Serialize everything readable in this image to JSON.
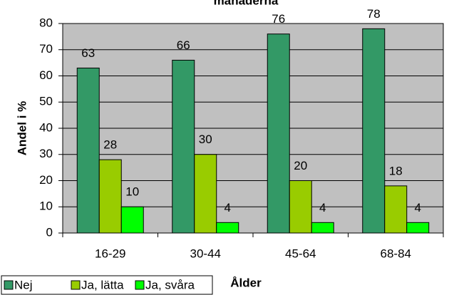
{
  "chart_data": {
    "type": "bar",
    "title": "månaderna",
    "xlabel": "Ålder",
    "ylabel": "Andel i %",
    "categories": [
      "16-29",
      "30-44",
      "45-64",
      "68-84"
    ],
    "series": [
      {
        "name": "Nej",
        "color": "#339966",
        "values": [
          63,
          66,
          76,
          78
        ]
      },
      {
        "name": "Ja, lätta",
        "color": "#99cc00",
        "values": [
          28,
          30,
          20,
          18
        ]
      },
      {
        "name": "Ja, svåra",
        "color": "#00ff00",
        "values": [
          10,
          4,
          4,
          4
        ]
      }
    ],
    "ylim": [
      0,
      80
    ],
    "yticks": [
      0,
      10,
      20,
      30,
      40,
      50,
      60,
      70,
      80
    ],
    "grid": true
  }
}
